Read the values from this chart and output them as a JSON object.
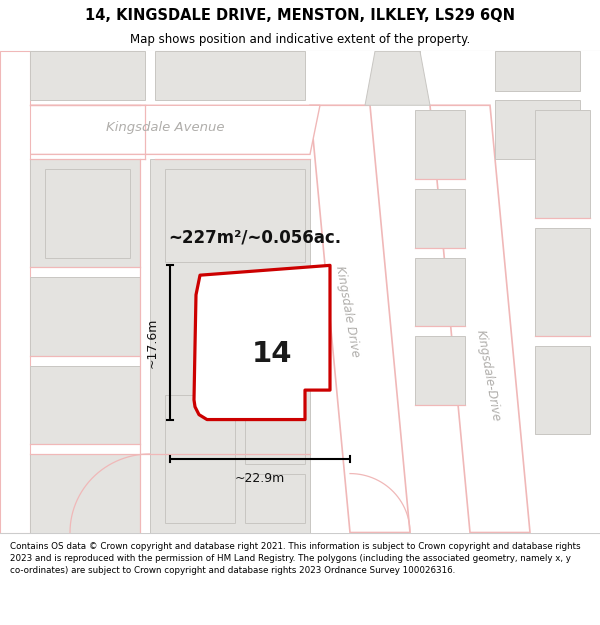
{
  "title": "14, KINGSDALE DRIVE, MENSTON, ILKLEY, LS29 6QN",
  "subtitle": "Map shows position and indicative extent of the property.",
  "footer_line1": "Contains OS data © Crown copyright and database right 2021. This information is subject to Crown copyright and database rights",
  "footer_line2": "2023 and is reproduced with the permission of HM Land Registry. The polygons (including the associated geometry, namely x, y",
  "footer_line3": "co-ordinates) are subject to Crown copyright and database rights 2023 Ordnance Survey 100026316.",
  "map_bg": "#f8f7f5",
  "road_fill": "#ffffff",
  "bld_color": "#e4e3e0",
  "bld_edge": "#c8c6c2",
  "pink_line": "#f0b8b8",
  "property_fill": "#ffffff",
  "property_edge": "#cc0000",
  "dim_color": "#111111",
  "label_color": "#b0aeab",
  "area_text": "~227m²/~0.056ac.",
  "number_text": "14",
  "dim_h_text": "~17.6m",
  "dim_w_text": "~22.9m",
  "street_avenue": "Kingsdale Avenue",
  "street_drive1": "Kingsdale Drive",
  "street_drive2": "Kingsdale-Drive",
  "title_fontsize": 10.5,
  "subtitle_fontsize": 8.5,
  "footer_fontsize": 6.3
}
